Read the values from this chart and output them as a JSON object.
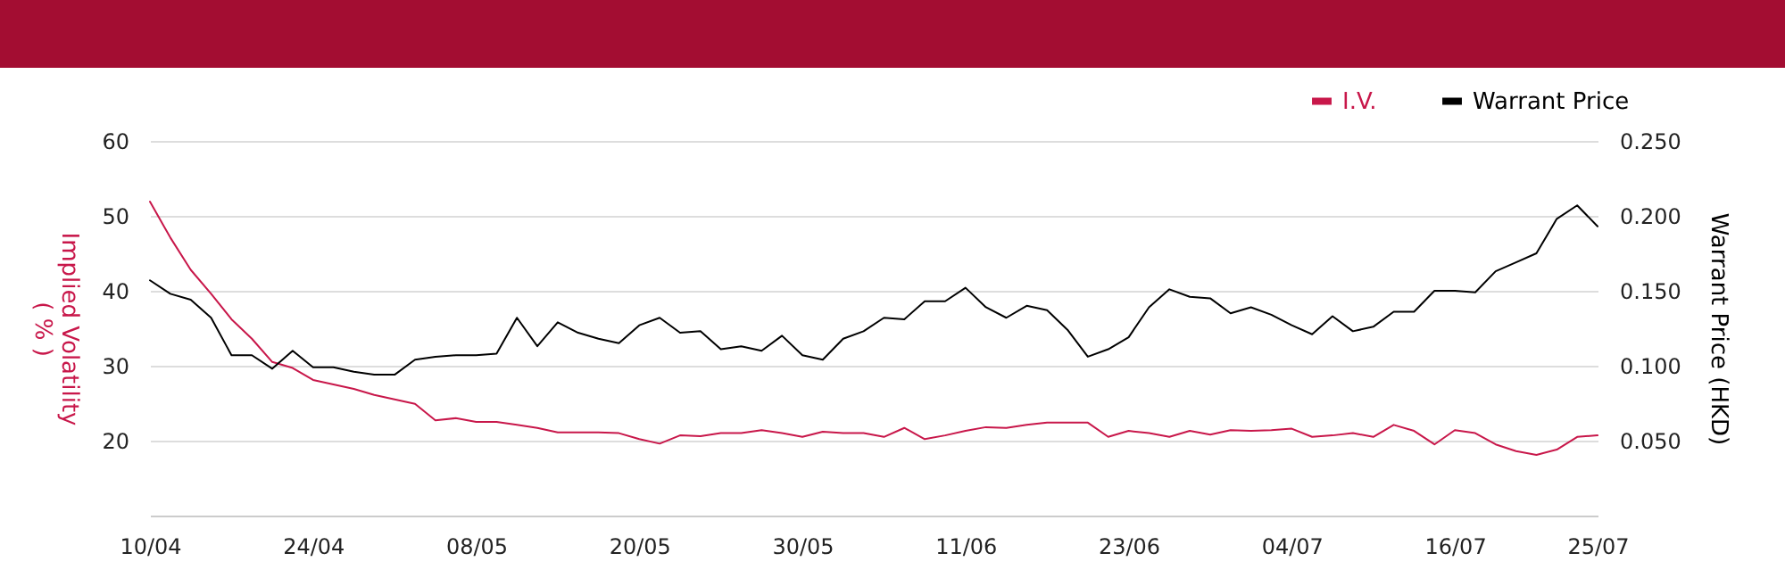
{
  "chart_data": {
    "type": "line",
    "ylabel": "Implied Volatility\n( % )",
    "y2label": "Warrant Price (HKD)",
    "categories": [
      "10/04",
      null,
      null,
      null,
      null,
      null,
      null,
      null,
      "24/04",
      null,
      null,
      null,
      null,
      null,
      null,
      null,
      "08/05",
      null,
      null,
      null,
      null,
      null,
      null,
      null,
      "20/05",
      null,
      null,
      null,
      null,
      null,
      null,
      null,
      "30/05",
      null,
      null,
      null,
      null,
      null,
      null,
      null,
      "11/06",
      null,
      null,
      null,
      null,
      null,
      null,
      null,
      "23/06",
      null,
      null,
      null,
      null,
      null,
      null,
      null,
      "04/07",
      null,
      null,
      null,
      null,
      null,
      null,
      null,
      "16/07",
      null,
      null,
      null,
      null,
      null,
      null,
      "25/07"
    ],
    "series": [
      {
        "name": "I.V.",
        "color": "#c8174a",
        "values": [
          51.9,
          47.1,
          42.8,
          39.6,
          36.2,
          33.6,
          30.5,
          29.7,
          28.1,
          27.5,
          26.9,
          26.1,
          25.5,
          24.9,
          22.7,
          23.0,
          22.5,
          22.5,
          22.1,
          21.7,
          21.1,
          21.1,
          21.1,
          21.0,
          20.2,
          19.6,
          20.7,
          20.6,
          21.0,
          21.0,
          21.4,
          21.0,
          20.5,
          21.2,
          21.0,
          21.0,
          20.5,
          21.7,
          20.2,
          20.7,
          21.3,
          21.8,
          21.7,
          22.1,
          22.4,
          22.4,
          22.4,
          20.5,
          21.3,
          21.0,
          20.5,
          21.3,
          20.8,
          21.4,
          21.3,
          21.4,
          21.6,
          20.5,
          20.7,
          21.0,
          20.5,
          22.1,
          21.3,
          19.5,
          21.4,
          21.0,
          19.5,
          18.6,
          18.1,
          18.8,
          20.5,
          20.7
        ]
      },
      {
        "name": "Warrant Price",
        "color": "#000000",
        "axis": "y2",
        "values": [
          0.157,
          0.148,
          0.144,
          0.132,
          0.107,
          0.107,
          0.098,
          0.11,
          0.099,
          0.099,
          0.096,
          0.094,
          0.094,
          0.104,
          0.106,
          0.107,
          0.107,
          0.108,
          0.132,
          0.113,
          0.129,
          0.122,
          0.118,
          0.115,
          0.127,
          0.132,
          0.122,
          0.123,
          0.111,
          0.113,
          0.11,
          0.12,
          0.107,
          0.104,
          0.118,
          0.123,
          0.132,
          0.131,
          0.143,
          0.143,
          0.152,
          0.139,
          0.132,
          0.14,
          0.137,
          0.124,
          0.106,
          0.111,
          0.119,
          0.139,
          0.151,
          0.146,
          0.145,
          0.135,
          0.139,
          0.134,
          0.127,
          0.121,
          0.133,
          0.123,
          0.126,
          0.136,
          0.136,
          0.15,
          0.15,
          0.149,
          0.163,
          0.169,
          0.175,
          0.198,
          0.207,
          0.193
        ]
      }
    ],
    "ylim": [
      10,
      60
    ],
    "yticks": [
      20,
      30,
      40,
      50,
      60
    ],
    "y2lim": [
      0,
      0.25
    ],
    "y2ticks": [
      {
        "value": 0.05,
        "label": "0.050"
      },
      {
        "value": 0.1,
        "label": "0.100"
      },
      {
        "value": 0.15,
        "label": "0.150"
      },
      {
        "value": 0.2,
        "label": "0.200"
      },
      {
        "value": 0.25,
        "label": "0.250"
      }
    ],
    "grid": "y",
    "legend": "top right",
    "line_style": "solid",
    "marker": "none"
  }
}
